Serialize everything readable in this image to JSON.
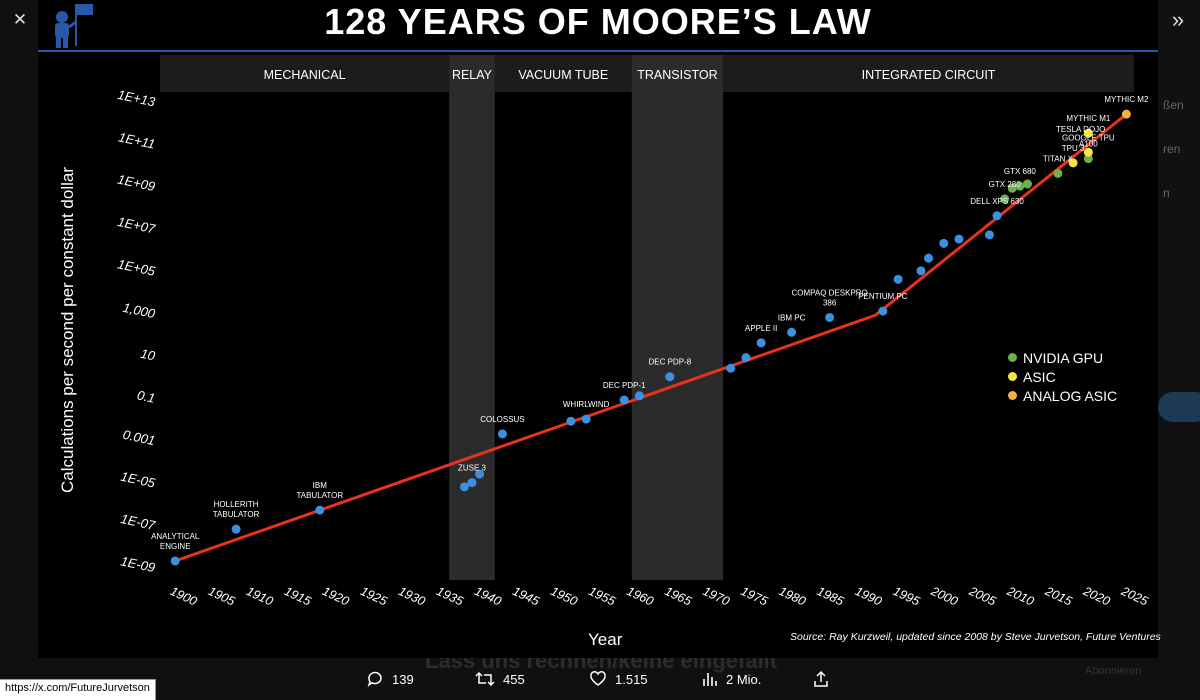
{
  "viewer": {
    "close_icon": "close-icon",
    "expand_icon": "chevron-double-right-icon"
  },
  "background_page": {
    "side_texts": [
      "ßen",
      "ren",
      "n",
      "",
      "",
      "",
      ""
    ],
    "bottom_ghost_text": "Lass uns rechnen/keine eingefallt",
    "bottom_right_text": "Abonnieren"
  },
  "image": {
    "title": "128 YEARS OF MOORE’S LAW",
    "source": "Source: Ray Kurzweil, updated since 2008 by Steve Jurvetson, Future Ventures",
    "legend": [
      {
        "label": "NVIDIA GPU",
        "color": "#6ab04c"
      },
      {
        "label": "ASIC",
        "color": "#f5e642"
      },
      {
        "label": "ANALOG ASIC",
        "color": "#f0b040"
      }
    ]
  },
  "chart_data": {
    "type": "scatter",
    "title": "128 YEARS OF MOORE’S LAW",
    "xlabel": "Year",
    "ylabel": "Calculations per second per constant dollar",
    "x_range": [
      1898,
      2026
    ],
    "y_scale": "log",
    "y_range_log10": [
      -9.6,
      13.4
    ],
    "x_ticks": [
      1900,
      1905,
      1910,
      1915,
      1920,
      1925,
      1930,
      1935,
      1940,
      1945,
      1950,
      1955,
      1960,
      1965,
      1970,
      1975,
      1980,
      1985,
      1990,
      1995,
      2000,
      2005,
      2010,
      2015,
      2020,
      2025
    ],
    "y_ticks": [
      {
        "label": "1E-09",
        "log10": -9
      },
      {
        "label": "1E-07",
        "log10": -7
      },
      {
        "label": "1E-05",
        "log10": -5
      },
      {
        "label": "0.001",
        "log10": -3
      },
      {
        "label": "0.1",
        "log10": -1
      },
      {
        "label": "10",
        "log10": 1
      },
      {
        "label": "1,000",
        "log10": 3
      },
      {
        "label": "1E+05",
        "log10": 5
      },
      {
        "label": "1E+07",
        "log10": 7
      },
      {
        "label": "1E+09",
        "log10": 9
      },
      {
        "label": "1E+11",
        "log10": 11
      },
      {
        "label": "1E+13",
        "log10": 13
      }
    ],
    "eras": [
      {
        "label": "MECHANICAL",
        "start": 1898,
        "end": 1936,
        "shade": false
      },
      {
        "label": "RELAY",
        "start": 1936,
        "end": 1942,
        "shade": true
      },
      {
        "label": "VACUUM TUBE",
        "start": 1942,
        "end": 1960,
        "shade": false
      },
      {
        "label": "TRANSISTOR",
        "start": 1960,
        "end": 1972,
        "shade": true
      },
      {
        "label": "INTEGRATED CIRCUIT",
        "start": 1972,
        "end": 2026,
        "shade": false
      }
    ],
    "trend_line": [
      {
        "x": 1900,
        "y": -8.7
      },
      {
        "x": 1992,
        "y": 2.9
      },
      {
        "x": 2025,
        "y": 12.4
      }
    ],
    "points": [
      {
        "x": 1900,
        "y": -8.7,
        "label": "ANALYTICAL ENGINE",
        "kind": "cpu"
      },
      {
        "x": 1908,
        "y": -7.2,
        "label": "HOLLERITH TABULATOR",
        "kind": "cpu"
      },
      {
        "x": 1919,
        "y": -6.3,
        "label": "IBM TABULATOR",
        "kind": "cpu"
      },
      {
        "x": 1938,
        "y": -5.2,
        "label": "",
        "kind": "cpu"
      },
      {
        "x": 1939,
        "y": -5.0,
        "label": "ZUSE 3",
        "kind": "cpu"
      },
      {
        "x": 1940,
        "y": -4.6,
        "label": "",
        "kind": "cpu"
      },
      {
        "x": 1943,
        "y": -2.7,
        "label": "COLOSSUS",
        "kind": "cpu"
      },
      {
        "x": 1952,
        "y": -2.1,
        "label": "",
        "kind": "cpu"
      },
      {
        "x": 1954,
        "y": -2.0,
        "label": "WHIRLWIND",
        "kind": "cpu"
      },
      {
        "x": 1959,
        "y": -1.1,
        "label": "DEC PDP-1",
        "kind": "cpu"
      },
      {
        "x": 1961,
        "y": -0.9,
        "label": "",
        "kind": "cpu"
      },
      {
        "x": 1965,
        "y": 0.0,
        "label": "DEC PDP-8",
        "kind": "cpu"
      },
      {
        "x": 1973,
        "y": 0.4,
        "label": "",
        "kind": "cpu"
      },
      {
        "x": 1975,
        "y": 0.9,
        "label": "",
        "kind": "cpu"
      },
      {
        "x": 1977,
        "y": 1.6,
        "label": "APPLE II",
        "kind": "cpu"
      },
      {
        "x": 1981,
        "y": 2.1,
        "label": "IBM PC",
        "kind": "cpu"
      },
      {
        "x": 1986,
        "y": 2.8,
        "label": "COMPAQ DESKPRO 386",
        "kind": "cpu"
      },
      {
        "x": 1993,
        "y": 3.1,
        "label": "PENTIUM PC",
        "kind": "cpu"
      },
      {
        "x": 1995,
        "y": 4.6,
        "label": "",
        "kind": "cpu"
      },
      {
        "x": 1998,
        "y": 5.0,
        "label": "",
        "kind": "cpu"
      },
      {
        "x": 1999,
        "y": 5.6,
        "label": "",
        "kind": "cpu"
      },
      {
        "x": 2001,
        "y": 6.3,
        "label": "",
        "kind": "cpu"
      },
      {
        "x": 2003,
        "y": 6.5,
        "label": "",
        "kind": "cpu"
      },
      {
        "x": 2007,
        "y": 6.7,
        "label": "",
        "kind": "cpu"
      },
      {
        "x": 2008,
        "y": 7.6,
        "label": "DELL XPS 630",
        "kind": "cpu"
      },
      {
        "x": 2009,
        "y": 8.4,
        "label": "GTX 280",
        "kind": "nvidia"
      },
      {
        "x": 2010,
        "y": 8.9,
        "label": "",
        "kind": "nvidia"
      },
      {
        "x": 2011,
        "y": 9.0,
        "label": "GTX 680",
        "kind": "nvidia"
      },
      {
        "x": 2012,
        "y": 9.1,
        "label": "",
        "kind": "nvidia"
      },
      {
        "x": 2016,
        "y": 9.6,
        "label": "TITAN X",
        "kind": "nvidia"
      },
      {
        "x": 2018,
        "y": 10.1,
        "label": "TPU 3",
        "kind": "asic"
      },
      {
        "x": 2020,
        "y": 10.3,
        "label": "A100",
        "kind": "nvidia"
      },
      {
        "x": 2020,
        "y": 10.6,
        "label": "GOOGLE TPU",
        "kind": "asic"
      },
      {
        "x": 2020,
        "y": 11.5,
        "label": "MYTHIC M1",
        "kind": "asic"
      },
      {
        "x": 2025,
        "y": 12.4,
        "label": "MYTHIC M2",
        "kind": "analog"
      }
    ],
    "extra_labels": [
      {
        "x": 2019,
        "y": 11.0,
        "label": "TESLA DOJO"
      }
    ]
  },
  "action_bar": {
    "replies": "139",
    "reposts": "455",
    "likes": "1.515",
    "views": "2 Mio."
  },
  "status_url": "https://x.com/FutureJurvetson"
}
